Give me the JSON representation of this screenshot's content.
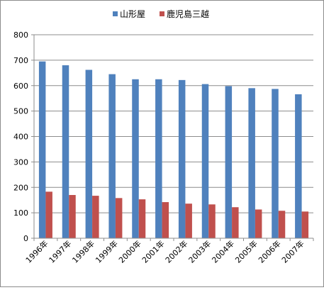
{
  "chart_data": {
    "type": "bar",
    "categories": [
      "1996年",
      "1997年",
      "1998年",
      "1999年",
      "2000年",
      "2001年",
      "2002年",
      "2003年",
      "2004年",
      "2005年",
      "2006年",
      "2007年"
    ],
    "series": [
      {
        "name": "山形屋",
        "color": "#4f81bd",
        "values": [
          695,
          680,
          662,
          645,
          625,
          625,
          622,
          606,
          598,
          590,
          587,
          566
        ]
      },
      {
        "name": "鹿児島三越",
        "color": "#c0504d",
        "values": [
          183,
          170,
          167,
          158,
          153,
          142,
          136,
          133,
          122,
          113,
          108,
          105
        ]
      }
    ],
    "ylim": [
      0,
      800
    ],
    "yticks": [
      0,
      100,
      200,
      300,
      400,
      500,
      600,
      700,
      800
    ],
    "grid": true,
    "legend": "top"
  }
}
